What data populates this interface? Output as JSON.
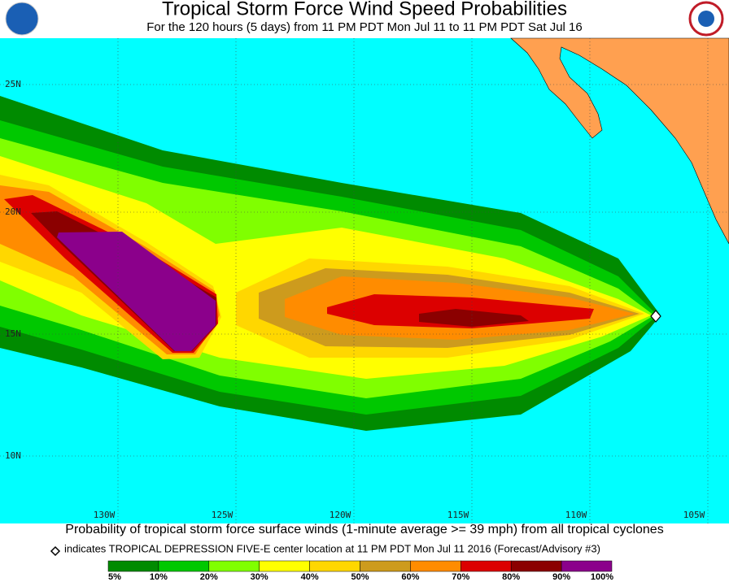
{
  "header": {
    "title": "Tropical Storm Force Wind Speed Probabilities",
    "subtitle": "For the 120 hours (5 days) from 11 PM PDT Mon Jul 11 to 11 PM PDT Sat Jul 16"
  },
  "map": {
    "lat_labels": [
      "25N",
      "20N",
      "15N",
      "10N"
    ],
    "lon_labels": [
      "130W",
      "125W",
      "120W",
      "115W",
      "110W",
      "105W"
    ]
  },
  "caption": "Probability of tropical storm force surface winds (1-minute average >= 39 mph) from all tropical cyclones",
  "note": "indicates TROPICAL DEPRESSION FIVE-E center location at 11 PM PDT Mon Jul 11 2016 (Forecast/Advisory #3)",
  "legend": {
    "labels": [
      "5%",
      "10%",
      "20%",
      "30%",
      "40%",
      "50%",
      "60%",
      "70%",
      "80%",
      "90%",
      "100%"
    ],
    "colors": [
      "#008b00",
      "#00c800",
      "#80ff00",
      "#ffff00",
      "#ffd700",
      "#cd9b1d",
      "#ff8c00",
      "#dc0000",
      "#8b0000",
      "#8b008b"
    ]
  }
}
